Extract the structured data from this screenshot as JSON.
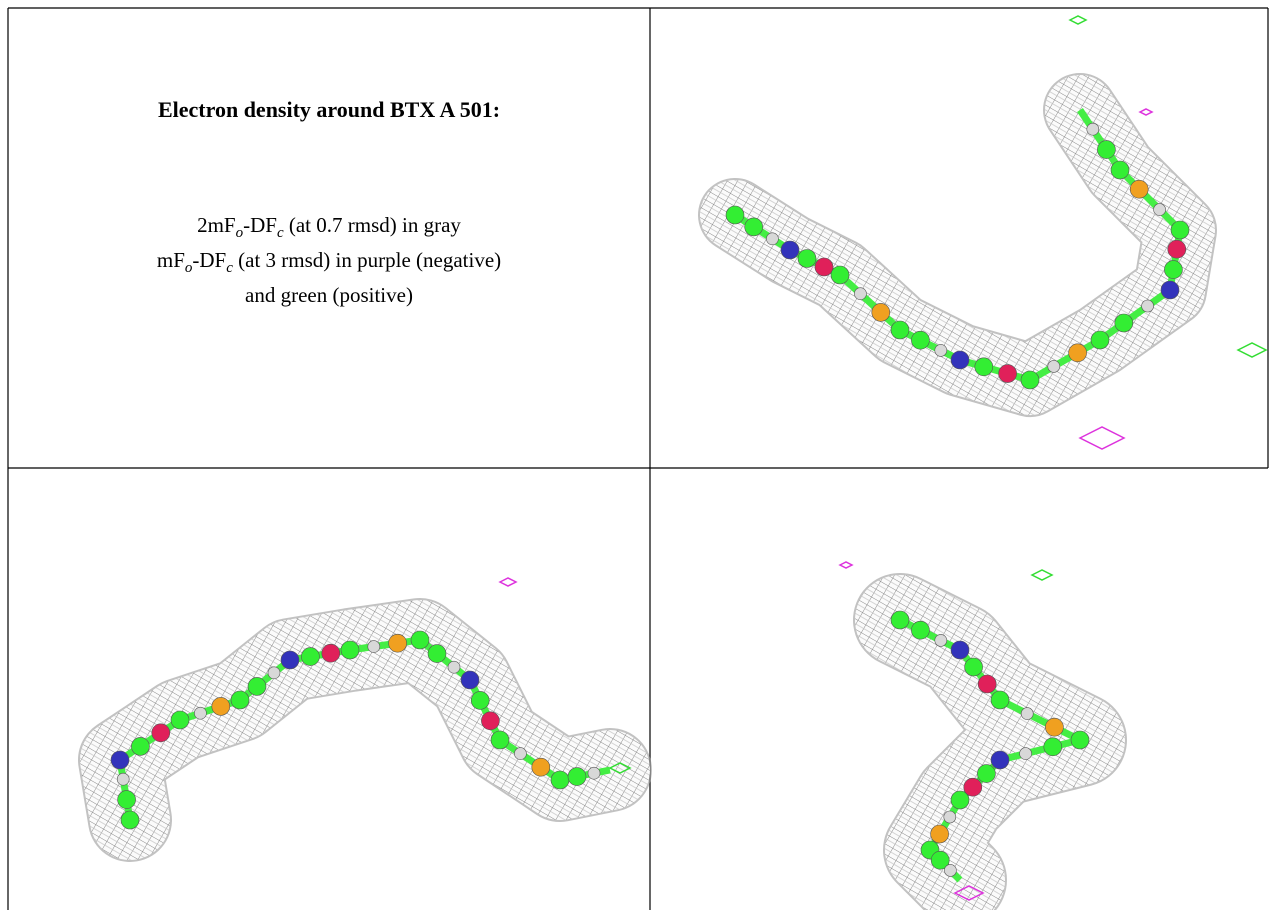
{
  "caption": {
    "title": "Electron density around BTX A 501:",
    "lines": [
      [
        "2mF",
        "o",
        "-DF",
        "c",
        " (at 0.7 rmsd) in gray"
      ],
      [
        "mF",
        "o",
        "-DF",
        "c",
        " (at 3 rmsd) in purple (negative)"
      ],
      [
        "and green (positive)"
      ]
    ]
  }
}
